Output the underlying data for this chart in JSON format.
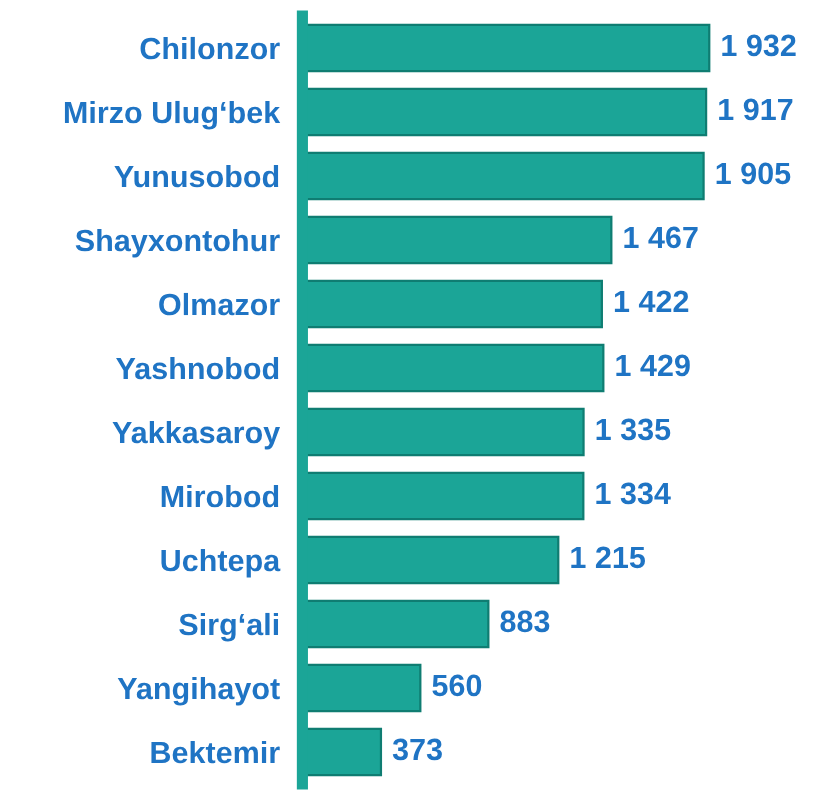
{
  "chart_data": {
    "type": "bar",
    "orientation": "horizontal",
    "categories": [
      "Chilonzor",
      "Mirzo Ulug‘bek",
      "Yunusobod",
      "Shayxontohur",
      "Olmazor",
      "Yashnobod",
      "Yakkasaroy",
      "Mirobod",
      "Uchtepa",
      "Sirg‘ali",
      "Yangihayot",
      "Bektemir"
    ],
    "values": [
      1932,
      1917,
      1905,
      1467,
      1422,
      1429,
      1335,
      1334,
      1215,
      883,
      560,
      373
    ],
    "value_labels": [
      "1 932",
      "1 917",
      "1 905",
      "1 467",
      "1 422",
      "1 429",
      "1 335",
      "1 334",
      "1 215",
      "883",
      "560",
      "373"
    ],
    "color": "#1ba597",
    "grid": false,
    "legend": false,
    "tick_labels": "y"
  }
}
